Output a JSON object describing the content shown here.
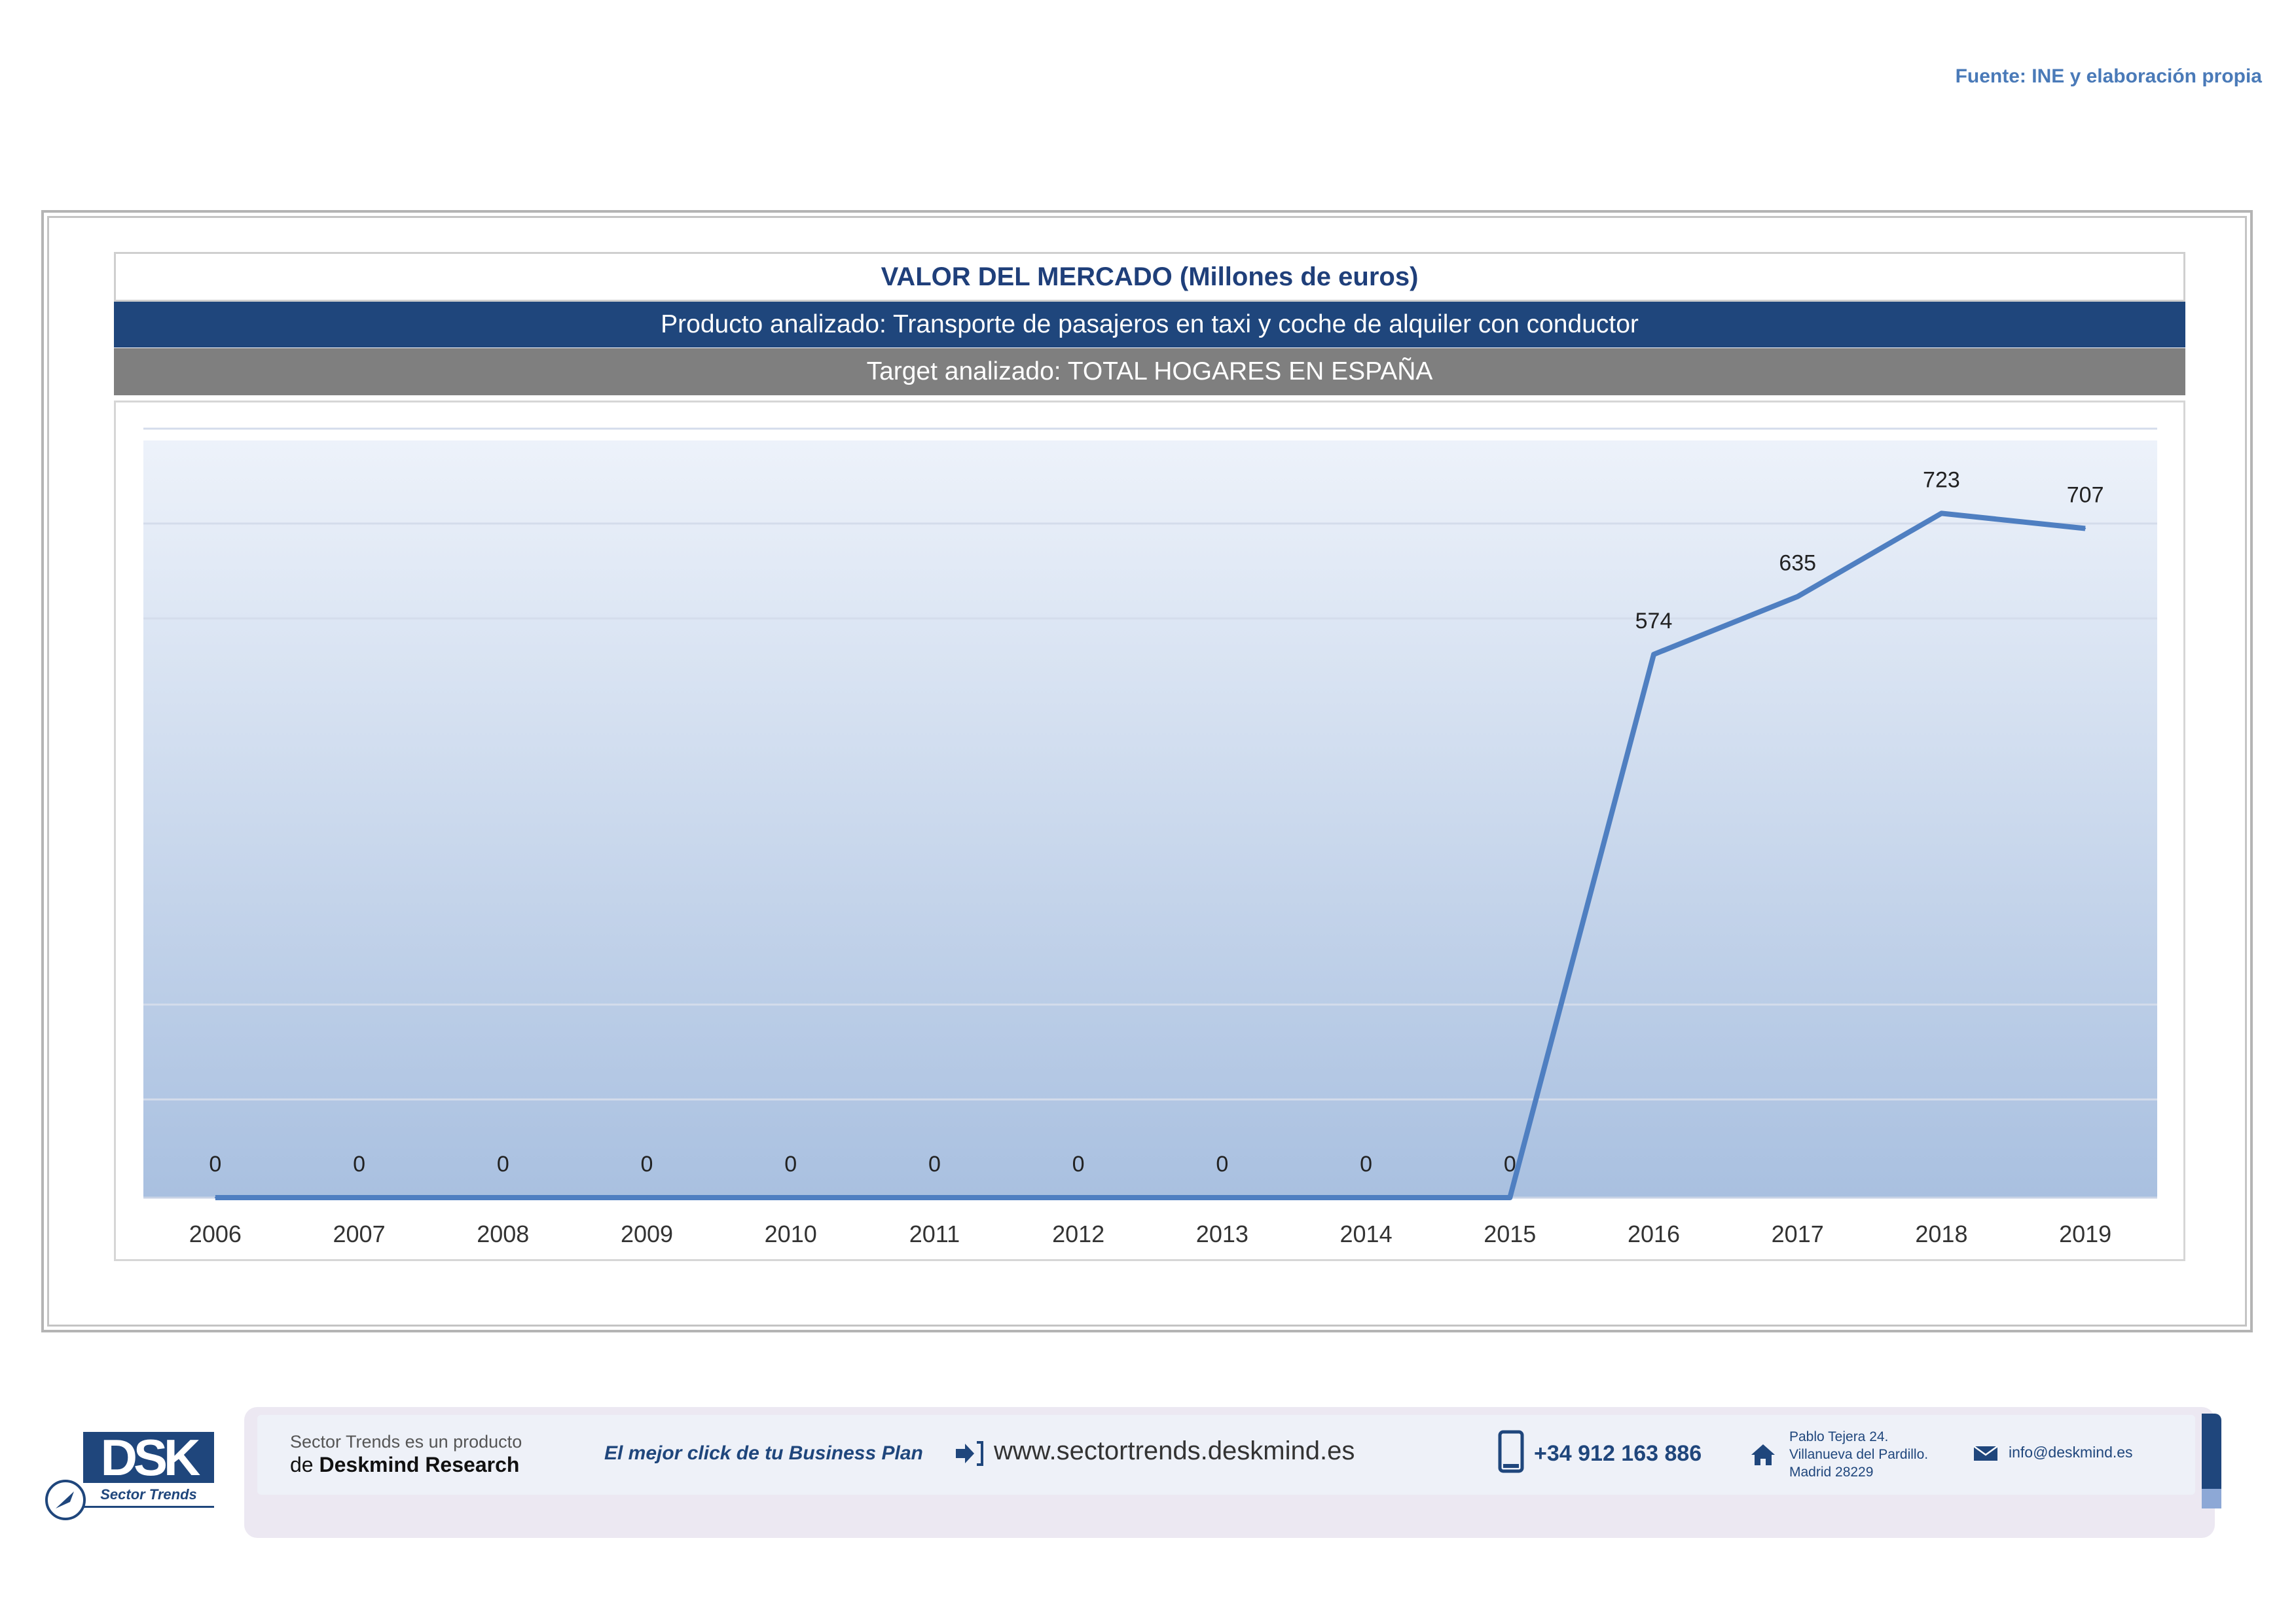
{
  "source": "Fuente: INE y elaboración propia",
  "header": {
    "title": "VALOR DEL MERCADO (Millones de euros)",
    "product": "Producto analizado: Transporte de pasajeros en taxi y coche de alquiler con conductor",
    "target": "Target analizado: TOTAL HOGARES EN ESPAÑA"
  },
  "colors": {
    "line": "#4f7fc1",
    "title": "#1f3f7a",
    "product_bar": "#1f467c",
    "target_bar": "#7f7f7f"
  },
  "chart_data": {
    "type": "line",
    "title": "VALOR DEL MERCADO (Millones de euros)",
    "xlabel": "",
    "ylabel": "",
    "categories": [
      "2006",
      "2007",
      "2008",
      "2009",
      "2010",
      "2011",
      "2012",
      "2013",
      "2014",
      "2015",
      "2016",
      "2017",
      "2018",
      "2019"
    ],
    "series": [
      {
        "name": "Valor del mercado",
        "values": [
          0,
          0,
          0,
          0,
          0,
          0,
          0,
          0,
          0,
          0,
          574,
          635,
          723,
          707
        ],
        "labels": [
          "0",
          "0",
          "0",
          "0",
          "0",
          "0",
          "0",
          "0",
          "0",
          "0",
          "574",
          "635",
          "723",
          "707"
        ]
      }
    ],
    "ylim": [
      0,
      800
    ],
    "grid": true,
    "legend": "none"
  },
  "footer": {
    "logo_text": "DSK",
    "logo_sub": "Sector Trends",
    "product_line": "Sector Trends es un producto",
    "brand_prefix": "de",
    "brand": "Deskmind Research",
    "slogan": "El mejor click de tu Business Plan",
    "website": "www.sectortrends.deskmind.es",
    "phone": "+34 912 163 886",
    "address_1": "Pablo Tejera 24.",
    "address_2": "Villanueva del Pardillo.",
    "address_3": "Madrid 28229",
    "email": "info@deskmind.es",
    "icons": [
      "arrow-right-icon",
      "phone-icon",
      "home-icon",
      "mail-icon",
      "rocket-icon"
    ]
  }
}
